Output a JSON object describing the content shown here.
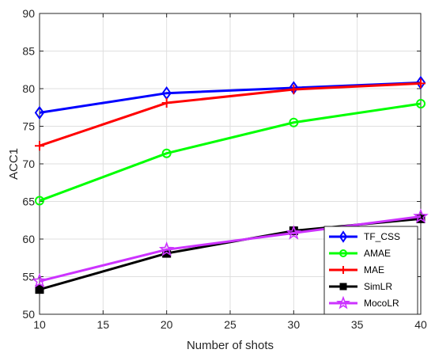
{
  "chart_data": {
    "type": "line",
    "xlabel": "Number of shots",
    "ylabel": "ACC1",
    "x": [
      10,
      20,
      30,
      40
    ],
    "xlim": [
      10,
      40
    ],
    "ylim": [
      50,
      90
    ],
    "xticks": [
      10,
      15,
      20,
      25,
      30,
      35,
      40
    ],
    "yticks": [
      50,
      55,
      60,
      65,
      70,
      75,
      80,
      85,
      90
    ],
    "grid": true,
    "legend_position": "bottom-right",
    "series": [
      {
        "name": "TF_CSS",
        "values": [
          76.8,
          79.4,
          80.1,
          80.8
        ],
        "color": "#0000ff",
        "marker": "diamond"
      },
      {
        "name": "AMAE",
        "values": [
          65.1,
          71.4,
          75.5,
          78.0
        ],
        "color": "#00ff00",
        "marker": "circle"
      },
      {
        "name": "MAE",
        "values": [
          72.4,
          78.1,
          79.9,
          80.7
        ],
        "color": "#ff0000",
        "marker": "plus"
      },
      {
        "name": "SimLR",
        "values": [
          53.3,
          58.1,
          61.1,
          62.7
        ],
        "color": "#000000",
        "marker": "square"
      },
      {
        "name": "MocoLR",
        "values": [
          54.4,
          58.6,
          60.8,
          63.0
        ],
        "color": "#cc33ff",
        "marker": "star"
      }
    ]
  }
}
